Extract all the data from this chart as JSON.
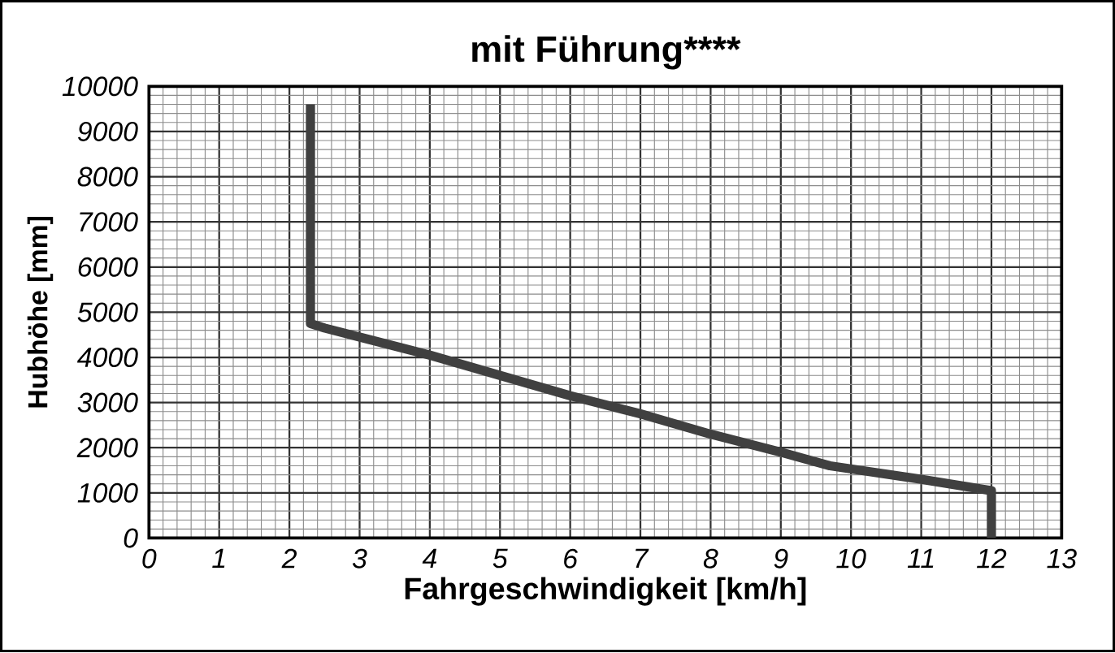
{
  "chart_data": {
    "type": "line",
    "title": "mit Führung****",
    "xlabel": "Fahrgeschwindigkeit [km/h]",
    "ylabel": "Hubhöhe [mm]",
    "x": [
      2.3,
      2.3,
      2.5,
      3,
      4,
      5,
      6,
      7,
      8,
      9,
      9.7,
      11,
      12,
      12
    ],
    "series": [
      {
        "color": "#404040",
        "values": [
          9600,
          4750,
          4650,
          4450,
          4050,
          3600,
          3150,
          2750,
          2300,
          1900,
          1600,
          1300,
          1050,
          0
        ]
      }
    ],
    "xlim": [
      0,
      13
    ],
    "ylim": [
      0,
      10000
    ],
    "xticks": [
      0,
      1,
      2,
      3,
      4,
      5,
      6,
      7,
      8,
      9,
      10,
      11,
      12,
      13
    ],
    "yticks": [
      0,
      1000,
      2000,
      3000,
      4000,
      5000,
      6000,
      7000,
      8000,
      9000,
      10000
    ],
    "grid": true,
    "marker": "none",
    "line_style": "solid"
  }
}
